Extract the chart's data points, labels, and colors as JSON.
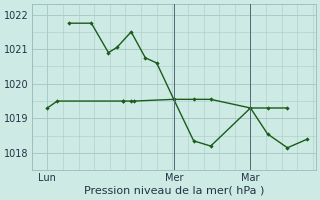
{
  "title": "Pression niveau de la mer( hPa )",
  "background_color": "#ceeae4",
  "line_color": "#1a5c1a",
  "grid_color": "#aaccc6",
  "ylim": [
    1017.5,
    1022.3
  ],
  "yticks": [
    1018,
    1019,
    1020,
    1021,
    1022
  ],
  "vline1_x": 0.5,
  "vline2_x": 0.77,
  "line1_x": [
    0.055,
    0.09,
    0.32,
    0.32,
    0.35,
    0.36,
    0.5,
    0.57,
    0.63,
    0.77,
    0.83,
    0.9
  ],
  "line1_y": [
    1019.3,
    1019.5,
    1019.5,
    1019.5,
    1019.5,
    1019.5,
    1019.55,
    1019.55,
    1019.55,
    1019.3,
    1019.3,
    1019.3
  ],
  "line2_x": [
    0.13,
    0.21,
    0.27,
    0.3,
    0.35,
    0.4,
    0.44,
    0.5,
    0.57,
    0.63,
    0.77,
    0.83,
    0.9,
    0.97
  ],
  "line2_y": [
    1021.75,
    1021.75,
    1020.9,
    1021.05,
    1021.5,
    1020.75,
    1020.6,
    1019.55,
    1018.35,
    1018.2,
    1019.3,
    1018.55,
    1018.15,
    1018.4
  ],
  "xtick_positions": [
    0.055,
    0.5,
    0.77
  ],
  "xlabels": [
    "Lun",
    "Mer",
    "Mar"
  ],
  "tick_fontsize": 7,
  "label_fontsize": 8
}
